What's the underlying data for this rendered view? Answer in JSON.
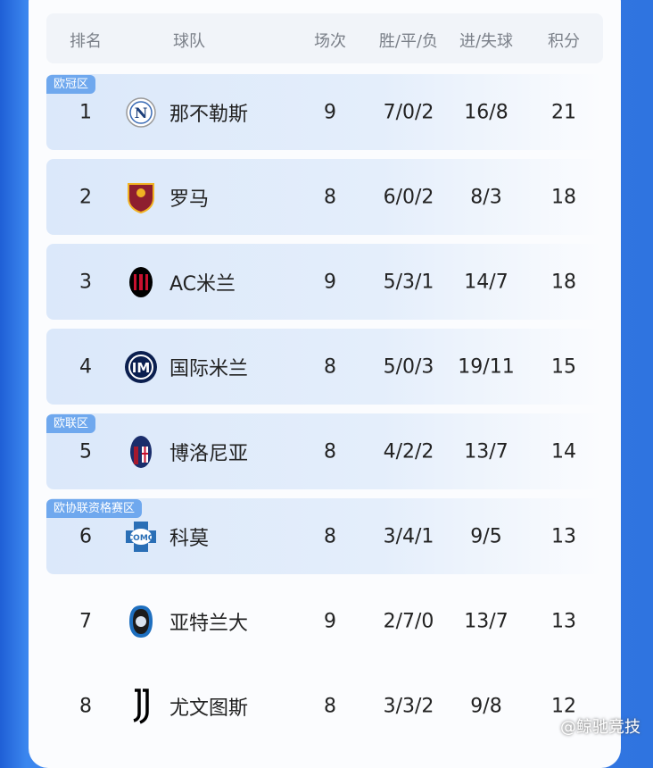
{
  "header": {
    "rank": "排名",
    "team": "球队",
    "played": "场次",
    "wdl": "胜/平/负",
    "goals": "进/失球",
    "points": "积分"
  },
  "zones": {
    "ucl": "欧冠区",
    "uel": "欧联区",
    "uecl": "欧协联资格赛区"
  },
  "rows": [
    {
      "rank": "1",
      "team": "那不勒斯",
      "played": "9",
      "wdl": "7/0/2",
      "goals": "16/8",
      "points": "21",
      "logo": "napoli-logo"
    },
    {
      "rank": "2",
      "team": "罗马",
      "played": "8",
      "wdl": "6/0/2",
      "goals": "8/3",
      "points": "18",
      "logo": "roma-logo"
    },
    {
      "rank": "3",
      "team": "AC米兰",
      "played": "9",
      "wdl": "5/3/1",
      "goals": "14/7",
      "points": "18",
      "logo": "ac-milan-logo"
    },
    {
      "rank": "4",
      "team": "国际米兰",
      "played": "8",
      "wdl": "5/0/3",
      "goals": "19/11",
      "points": "15",
      "logo": "inter-logo"
    },
    {
      "rank": "5",
      "team": "博洛尼亚",
      "played": "8",
      "wdl": "4/2/2",
      "goals": "13/7",
      "points": "14",
      "logo": "bologna-logo"
    },
    {
      "rank": "6",
      "team": "科莫",
      "played": "8",
      "wdl": "3/4/1",
      "goals": "9/5",
      "points": "13",
      "logo": "como-logo"
    },
    {
      "rank": "7",
      "team": "亚特兰大",
      "played": "9",
      "wdl": "2/7/0",
      "goals": "13/7",
      "points": "13",
      "logo": "atalanta-logo"
    },
    {
      "rank": "8",
      "team": "尤文图斯",
      "played": "8",
      "wdl": "3/3/2",
      "goals": "9/8",
      "points": "12",
      "logo": "juventus-logo"
    }
  ],
  "watermark": "@鲸驰竞技",
  "colors": {
    "background": "#2f74e0",
    "zone_badge": "#6fa8ee",
    "row_highlight": "#dbe8fa"
  }
}
